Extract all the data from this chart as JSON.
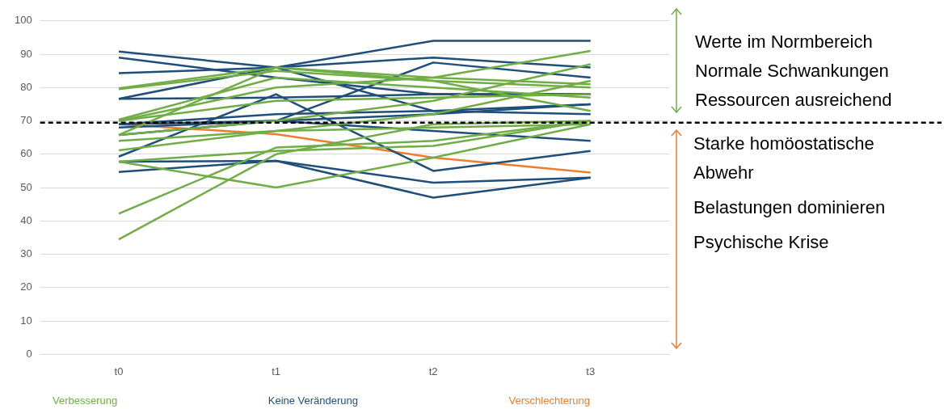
{
  "chart_data": {
    "type": "line",
    "categories": [
      "t0",
      "t1",
      "t2",
      "t3"
    ],
    "ylim": [
      0,
      100
    ],
    "yticks": [
      0,
      10,
      20,
      30,
      40,
      50,
      60,
      70,
      80,
      90,
      100
    ],
    "grid": "y",
    "legend": "bottom",
    "marker": "none",
    "line_style": "solid",
    "ref_lines": [
      {
        "axis": "y",
        "value": 69.5,
        "color": "#000000",
        "line_style": "dashed"
      }
    ],
    "annotations": [
      "Werte im Normbereich",
      "Normale Schwankungen",
      "Ressourcen ausreichend",
      "Starke homöostatische Abwehr",
      "Belastungen dominieren",
      "Psychische Krise"
    ],
    "series": [
      {
        "name": "Verbesserung",
        "color": "#70ad47",
        "values": [
          79.8,
          86,
          83,
          81
        ]
      },
      {
        "color": "#70ad47",
        "values": [
          79.5,
          85,
          82,
          80
        ]
      },
      {
        "color": "#70ad47",
        "values": [
          70.4,
          83,
          80,
          77
        ]
      },
      {
        "color": "#70ad47",
        "values": [
          65.8,
          86,
          82,
          73
        ]
      },
      {
        "color": "#70ad47",
        "values": [
          65.8,
          70,
          76,
          87
        ]
      },
      {
        "color": "#70ad47",
        "values": [
          64,
          67,
          72,
          82
        ]
      },
      {
        "color": "#70ad47",
        "values": [
          61.2,
          67,
          68,
          69
        ]
      },
      {
        "color": "#70ad47",
        "values": [
          57.8,
          50,
          59,
          69
        ]
      },
      {
        "color": "#70ad47",
        "values": [
          57.8,
          61,
          62.5,
          70
        ]
      },
      {
        "color": "#70ad47",
        "values": [
          42.2,
          62,
          64,
          70
        ]
      },
      {
        "color": "#70ad47",
        "values": [
          34.5,
          60,
          69,
          70
        ]
      },
      {
        "color": "#70ad47",
        "values": [
          70,
          80,
          83,
          91
        ]
      },
      {
        "color": "#70ad47",
        "values": [
          70,
          76,
          77,
          78
        ]
      },
      {
        "name": "Keine Veränderung",
        "color": "#1f4e79",
        "values": [
          90.8,
          86,
          73,
          72
        ]
      },
      {
        "color": "#1f4e79",
        "values": [
          89,
          83,
          78,
          78
        ]
      },
      {
        "color": "#1f4e79",
        "values": [
          84.3,
          86,
          89,
          86
        ]
      },
      {
        "color": "#1f4e79",
        "values": [
          76.6,
          86,
          94,
          94
        ]
      },
      {
        "color": "#1f4e79",
        "values": [
          76.6,
          77,
          78,
          78
        ]
      },
      {
        "color": "#1f4e79",
        "values": [
          69,
          70,
          87.5,
          83
        ]
      },
      {
        "color": "#1f4e79",
        "values": [
          65.8,
          70,
          67,
          64
        ]
      },
      {
        "color": "#1f4e79",
        "values": [
          59.3,
          78,
          55,
          61
        ]
      },
      {
        "color": "#1f4e79",
        "values": [
          57.8,
          58,
          51.5,
          53
        ]
      },
      {
        "color": "#1f4e79",
        "values": [
          54.7,
          58,
          47,
          53
        ]
      },
      {
        "color": "#1f4e79",
        "values": [
          69,
          72,
          73,
          75
        ]
      },
      {
        "color": "#1f4e79",
        "values": [
          68,
          70,
          72,
          75
        ]
      },
      {
        "name": "Verschlechterung",
        "color": "#ed7d31",
        "values": [
          69,
          66,
          59,
          54.5
        ]
      }
    ]
  }
}
